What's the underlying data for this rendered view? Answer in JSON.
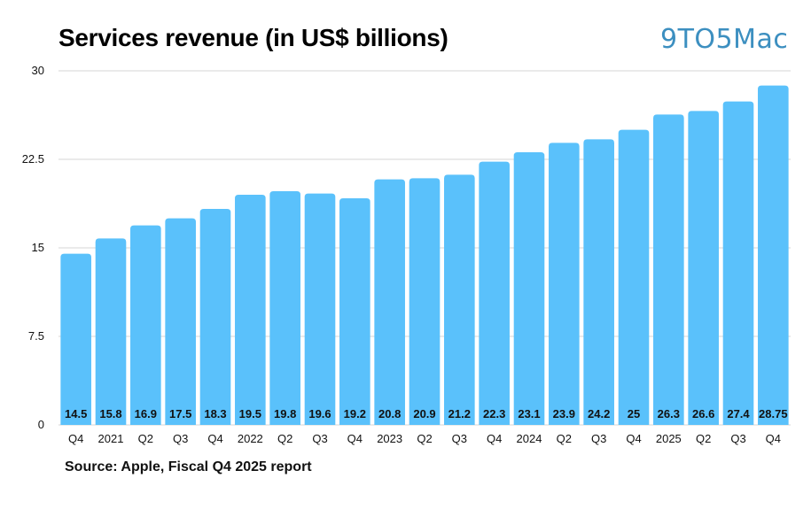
{
  "title": "Services revenue (in US$ billions)",
  "brand": "9TO5Mac",
  "source": "Source: Apple, Fiscal Q4 2025 report",
  "colors": {
    "bar": "#5ac1fb",
    "grid": "#d6d6d6",
    "text": "#111111",
    "brand": "#3c8fc0"
  },
  "chart_data": {
    "type": "bar",
    "title": "Services revenue (in US$ billions)",
    "xlabel": "",
    "ylabel": "",
    "categories": [
      "Q4",
      "2021",
      "Q2",
      "Q3",
      "Q4",
      "2022",
      "Q2",
      "Q3",
      "Q4",
      "2023",
      "Q2",
      "Q3",
      "Q4",
      "2024",
      "Q2",
      "Q3",
      "Q4",
      "2025",
      "Q2",
      "Q3",
      "Q4"
    ],
    "values": [
      14.5,
      15.8,
      16.9,
      17.5,
      18.3,
      19.5,
      19.8,
      19.6,
      19.2,
      20.8,
      20.9,
      21.2,
      22.3,
      23.1,
      23.9,
      24.2,
      25,
      26.3,
      26.6,
      27.4,
      28.75
    ],
    "value_labels": [
      "14.5",
      "15.8",
      "16.9",
      "17.5",
      "18.3",
      "19.5",
      "19.8",
      "19.6",
      "19.2",
      "20.8",
      "20.9",
      "21.2",
      "22.3",
      "23.1",
      "23.9",
      "24.2",
      "25",
      "26.3",
      "26.6",
      "27.4",
      "28.75"
    ],
    "ylim": [
      0,
      30
    ],
    "yticks": [
      0,
      7.5,
      15,
      22.5,
      30
    ],
    "ytick_labels": [
      "0",
      "7.5",
      "15",
      "22.5",
      "30"
    ],
    "grid": true,
    "legend": "none"
  }
}
